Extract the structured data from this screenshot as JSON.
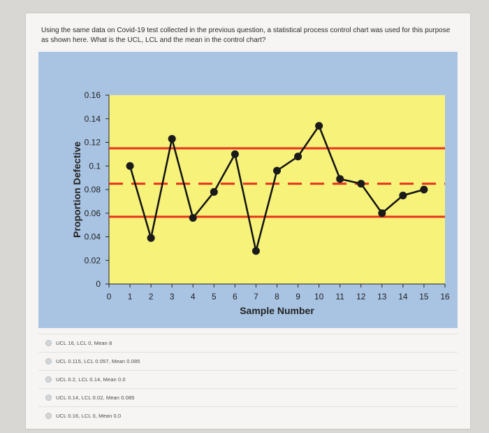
{
  "question": {
    "text": "Using the same data on Covid-19 test collected in the previous question, a statistical process control chart was used for this purpose as shown here. What is the UCL, LCL and the mean in the control chart?"
  },
  "options": [
    {
      "label": "UCL 16, LCL 0, Mean 8"
    },
    {
      "label": "UCL 0.115, LCL 0.057, Mean 0.085"
    },
    {
      "label": "UCL 0.2, LCL 0.14, Mean 0.0"
    },
    {
      "label": "UCL 0.14, LCL 0.02, Mean 0.085"
    },
    {
      "label": "UCL 0.16, LCL 0, Mean 0.0"
    }
  ],
  "chart_data": {
    "type": "line",
    "title": "",
    "xlabel": "Sample Number",
    "ylabel": "Proportion Defective",
    "xlim": [
      0,
      16
    ],
    "ylim": [
      0,
      0.16
    ],
    "xticks": [
      "0",
      "1",
      "2",
      "3",
      "4",
      "5",
      "6",
      "7",
      "8",
      "9",
      "10",
      "11",
      "12",
      "13",
      "14",
      "15",
      "16"
    ],
    "yticks": [
      "0",
      "0.02",
      "0.04",
      "0.06",
      "0.08",
      "0.1",
      "0.12",
      "0.14",
      "0.16"
    ],
    "yticks_values": [
      0,
      0.02,
      0.04,
      0.06,
      0.08,
      0.1,
      0.12,
      0.14,
      0.16
    ],
    "series": [
      {
        "x": [
          1,
          2,
          3,
          4,
          5,
          6,
          7,
          8,
          9,
          10,
          11,
          12,
          13,
          14,
          15
        ],
        "values": [
          0.1,
          0.039,
          0.123,
          0.056,
          0.078,
          0.11,
          0.028,
          0.096,
          0.108,
          0.134,
          0.089,
          0.085,
          0.06,
          0.075,
          0.08
        ]
      }
    ],
    "control_limits": {
      "ucl": 0.115,
      "lcl": 0.057,
      "mean": 0.085
    },
    "colors": {
      "plot_bg": "#f6f27a",
      "outer_bg": "#a9c4e3",
      "line": "#111111",
      "limits": "#e8321e"
    }
  }
}
